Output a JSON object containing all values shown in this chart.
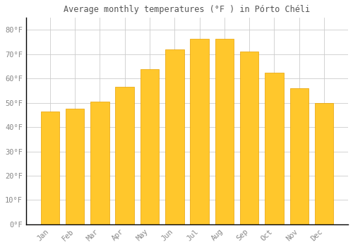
{
  "title": "Average monthly temperatures (°F ) in Pórto Chéli",
  "months": [
    "Jan",
    "Feb",
    "Mar",
    "Apr",
    "May",
    "Jun",
    "Jul",
    "Aug",
    "Sep",
    "Oct",
    "Nov",
    "Dec"
  ],
  "values": [
    46.5,
    47.5,
    50.5,
    56.5,
    64.0,
    72.0,
    76.5,
    76.5,
    71.0,
    62.5,
    56.0,
    50.0
  ],
  "bar_color_top": "#FFC72C",
  "bar_color_bottom": "#F5A800",
  "bar_edge_color": "#E8A000",
  "background_color": "#FFFFFF",
  "grid_color": "#CCCCCC",
  "tick_label_color": "#888888",
  "title_color": "#555555",
  "ylim": [
    0,
    85
  ],
  "yticks": [
    0,
    10,
    20,
    30,
    40,
    50,
    60,
    70,
    80
  ],
  "ytick_labels": [
    "0°F",
    "10°F",
    "20°F",
    "30°F",
    "40°F",
    "50°F",
    "60°F",
    "70°F",
    "80°F"
  ],
  "bar_width": 0.75,
  "figsize": [
    5.0,
    3.5
  ],
  "dpi": 100
}
